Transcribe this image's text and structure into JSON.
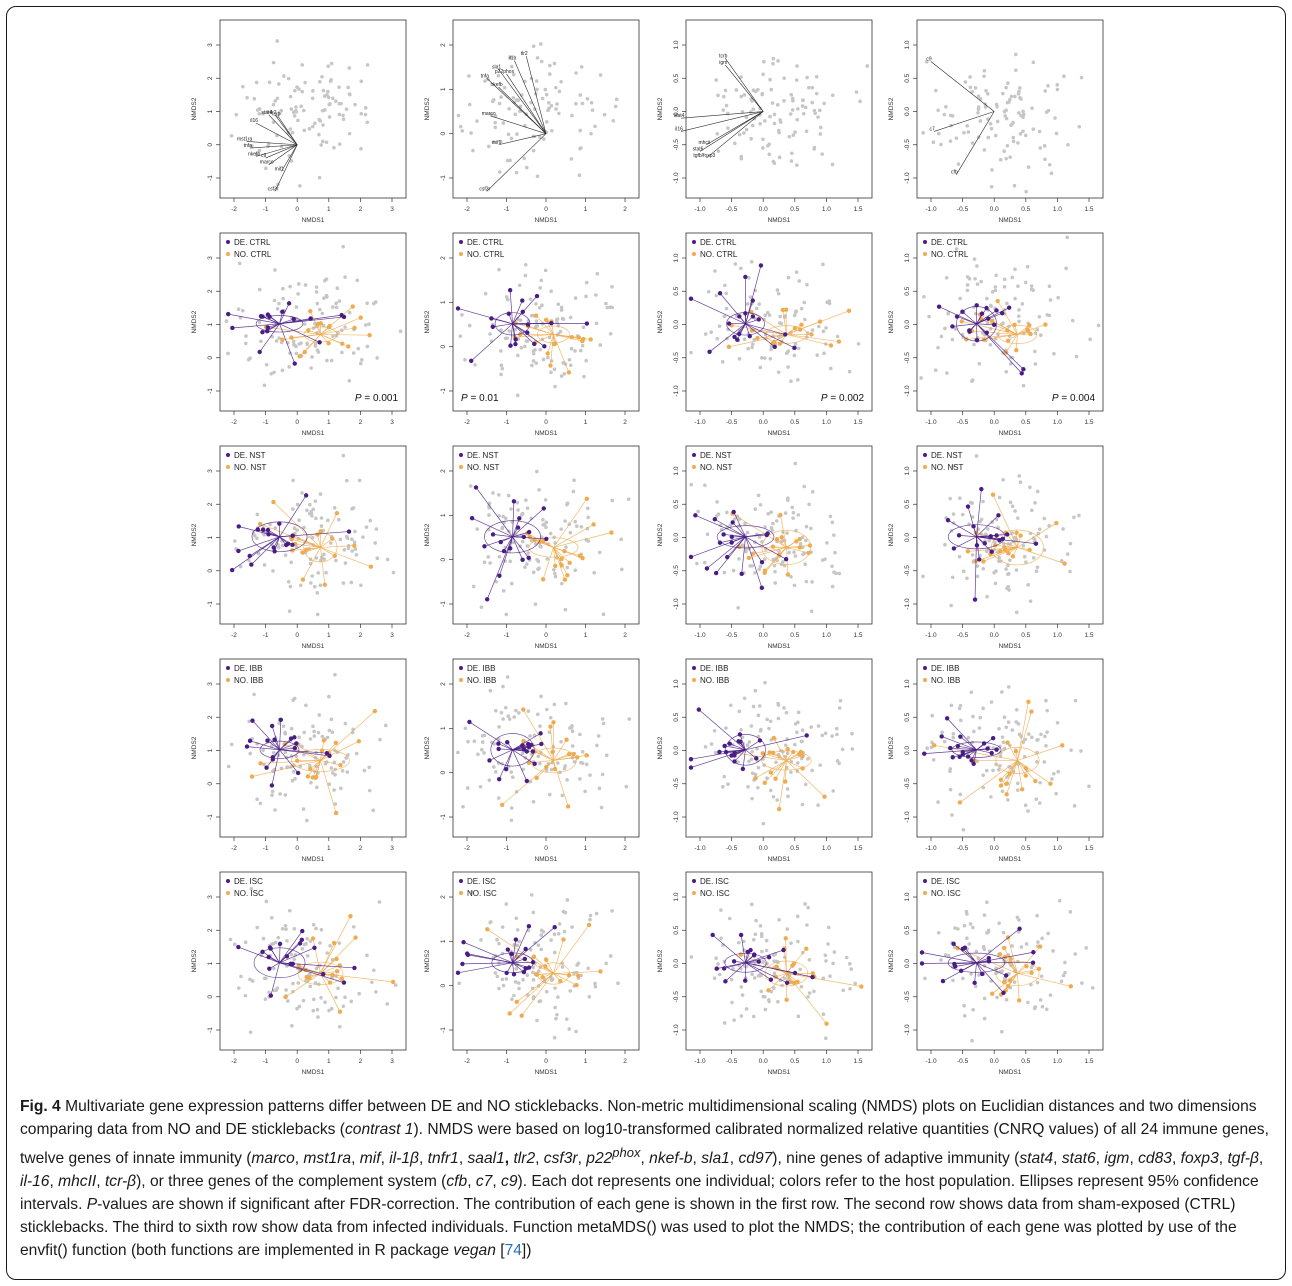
{
  "colors": {
    "de": "#4a1d86",
    "no": "#f0ab4f",
    "bg": "#c6c6c6",
    "vec": "#2b2b2b"
  },
  "axis_labels": {
    "x": "NMDS1",
    "y": "NMDS2"
  },
  "group_labels": {
    "de": "DE.",
    "no": "NO."
  },
  "columns": [
    {
      "xticks": [
        "-2",
        "-1",
        "0",
        "1",
        "2",
        "3"
      ],
      "yticks": [
        "-1",
        "0",
        "1",
        "2",
        "3"
      ]
    },
    {
      "xticks": [
        "-2",
        "-1",
        "0",
        "1",
        "2"
      ],
      "yticks": [
        "-1",
        "0",
        "1",
        "2"
      ]
    },
    {
      "xticks": [
        "-1.0",
        "-0.5",
        "0.0",
        "0.5",
        "1.0",
        "1.5"
      ],
      "yticks": [
        "-1.0",
        "-0.5",
        "0.0",
        "0.5",
        "1.0"
      ]
    },
    {
      "xticks": [
        "-1.0",
        "-0.5",
        "0.0",
        "0.5",
        "1.0",
        "1.5"
      ],
      "yticks": [
        "-1.0",
        "-0.5",
        "0.0",
        "0.5",
        "1.0"
      ]
    }
  ],
  "rows": [
    {
      "type": "vectors"
    },
    {
      "type": "groups",
      "treatment": "CTRL"
    },
    {
      "type": "groups",
      "treatment": "NST"
    },
    {
      "type": "groups",
      "treatment": "IBB"
    },
    {
      "type": "groups",
      "treatment": "ISC"
    }
  ],
  "p_values": [
    {
      "italic": "P",
      "rest": " = 0.001"
    },
    {
      "italic": "P",
      "rest": " = 0.01"
    },
    {
      "italic": "P",
      "rest": " = 0.002"
    },
    {
      "italic": "P",
      "rest": " = 0.004"
    }
  ],
  "chart_data": [
    {
      "type": "scatter",
      "panel": "row1-col1",
      "xlabel": "NMDS1",
      "ylabel": "NMDS2",
      "xlim": [
        -2.2,
        3.4
      ],
      "ylim": [
        -1.7,
        3.2
      ],
      "vectors": [
        {
          "gene": "csf3r",
          "x": -0.7,
          "y": -1.4
        },
        {
          "gene": "mif1",
          "x": -0.5,
          "y": -0.8
        },
        {
          "gene": "marco",
          "x": -0.9,
          "y": -0.6
        },
        {
          "gene": "c9",
          "x": -1.0,
          "y": -0.4
        },
        {
          "gene": "nkefb",
          "x": -1.3,
          "y": -0.35
        },
        {
          "gene": "tnfa",
          "x": -1.5,
          "y": -0.1
        },
        {
          "gene": "mst1ra",
          "x": -1.6,
          "y": 0.1
        },
        {
          "gene": "stat4",
          "x": -0.9,
          "y": 0.9
        },
        {
          "gene": "il16",
          "x": -1.3,
          "y": 0.65
        },
        {
          "gene": "tlr2",
          "x": -0.7,
          "y": 0.9
        },
        {
          "gene": "tcrb",
          "x": -0.6,
          "y": 0.85
        }
      ]
    },
    {
      "type": "scatter",
      "panel": "row1-col2",
      "xlabel": "NMDS1",
      "ylabel": "NMDS2",
      "xlim": [
        -1.9,
        2.2
      ],
      "ylim": [
        -1.8,
        2.5
      ],
      "vectors": [
        {
          "gene": "csf3r",
          "x": -1.5,
          "y": -1.3
        },
        {
          "gene": "mif1",
          "x": -1.2,
          "y": -0.25
        },
        {
          "gene": "marco",
          "x": -1.4,
          "y": 0.4
        },
        {
          "gene": "nkefb",
          "x": -1.2,
          "y": 1.05
        },
        {
          "gene": "tnfa",
          "x": -1.5,
          "y": 1.25
        },
        {
          "gene": "sla1",
          "x": -1.2,
          "y": 1.45
        },
        {
          "gene": "p22phox",
          "x": -1.0,
          "y": 1.35
        },
        {
          "gene": "il1b",
          "x": -0.8,
          "y": 1.65
        },
        {
          "gene": "tlr2",
          "x": -0.5,
          "y": 1.75
        }
      ]
    },
    {
      "type": "scatter",
      "panel": "row1-col3",
      "xlabel": "NMDS1",
      "ylabel": "NMDS2",
      "xlim": [
        -1.4,
        1.65
      ],
      "ylim": [
        -1.25,
        1.2
      ],
      "vectors": [
        {
          "gene": "tcrb",
          "x": -0.6,
          "y": 0.8
        },
        {
          "gene": "igm",
          "x": -0.6,
          "y": 0.7
        },
        {
          "gene": "stat4",
          "x": -1.3,
          "y": -0.1
        },
        {
          "gene": "il16",
          "x": -1.3,
          "y": -0.3
        },
        {
          "gene": "mhcii",
          "x": -0.9,
          "y": -0.5
        },
        {
          "gene": "stat6",
          "x": -1.0,
          "y": -0.6
        },
        {
          "gene": "tgfb/foxp3",
          "x": -0.9,
          "y": -0.7
        }
      ]
    },
    {
      "type": "scatter",
      "panel": "row1-col4",
      "xlabel": "NMDS1",
      "ylabel": "NMDS2",
      "xlim": [
        -1.1,
        1.7
      ],
      "ylim": [
        -1.25,
        1.2
      ],
      "vectors": [
        {
          "gene": "c9",
          "x": -1.0,
          "y": 0.75
        },
        {
          "gene": "c7",
          "x": -0.95,
          "y": -0.3
        },
        {
          "gene": "cfb",
          "x": -0.6,
          "y": -0.95
        }
      ]
    }
  ]
}
